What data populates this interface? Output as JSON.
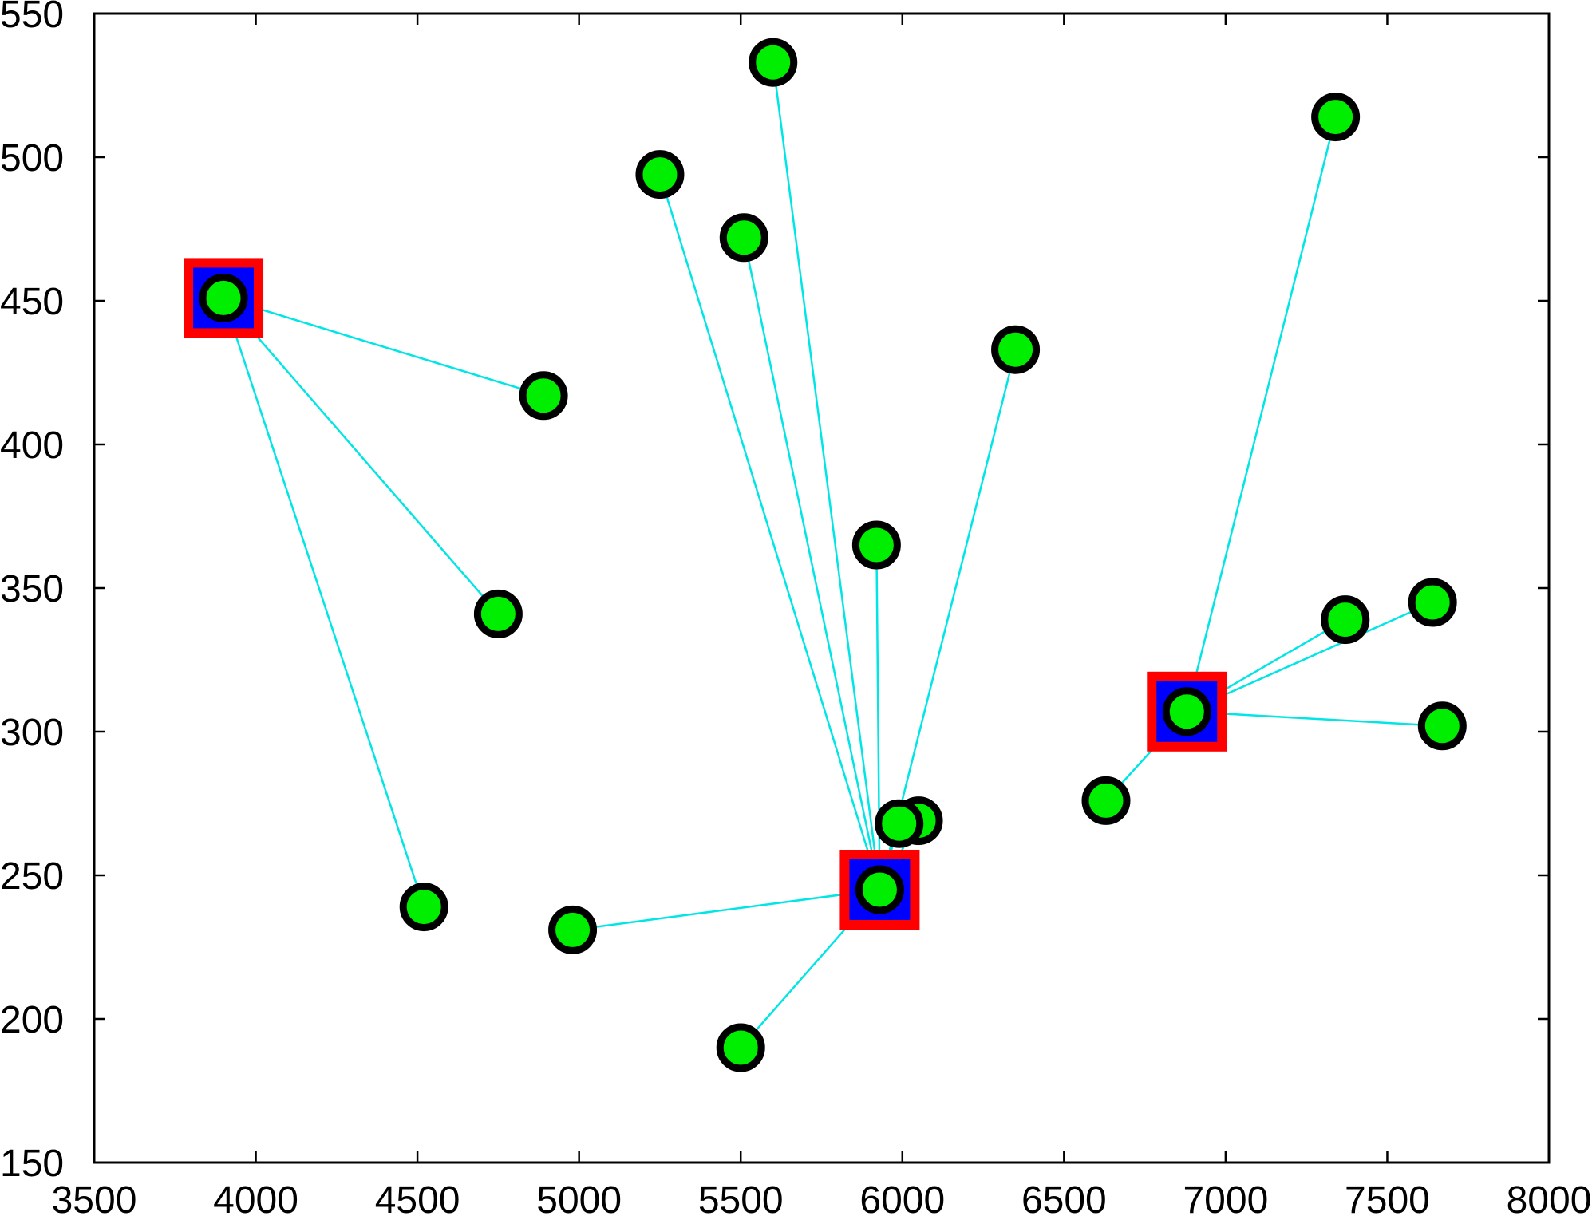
{
  "chart_data": {
    "type": "scatter",
    "title": "",
    "xlabel": "",
    "ylabel": "",
    "xlim": [
      3500,
      8000
    ],
    "ylim": [
      150,
      550
    ],
    "x_ticks": [
      3500,
      4000,
      4500,
      5000,
      5500,
      6000,
      6500,
      7000,
      7500,
      8000
    ],
    "y_ticks": [
      150,
      200,
      250,
      300,
      350,
      400,
      450,
      500,
      550
    ],
    "x_tick_labels": [
      "3500",
      "4000",
      "4500",
      "5000",
      "5500",
      "6000",
      "6500",
      "7000",
      "7500",
      "8000"
    ],
    "y_tick_labels": [
      "150",
      "200",
      "250",
      "300",
      "350",
      "400",
      "450",
      "500",
      "550"
    ],
    "grid": false,
    "legend": "none",
    "colors": {
      "point_fill": "#00ee00",
      "point_edge": "#000000",
      "center_fill": "#0000ff",
      "center_edge": "#ff0000",
      "link": "#00e5e5"
    },
    "centers": [
      {
        "x": 3900,
        "y": 451
      },
      {
        "x": 5930,
        "y": 245
      },
      {
        "x": 6880,
        "y": 307
      }
    ],
    "points": [
      {
        "x": 3900,
        "y": 451,
        "center": 0
      },
      {
        "x": 4890,
        "y": 417,
        "center": 0
      },
      {
        "x": 4750,
        "y": 341,
        "center": 0
      },
      {
        "x": 4520,
        "y": 239,
        "center": 0
      },
      {
        "x": 5930,
        "y": 245,
        "center": 1
      },
      {
        "x": 5600,
        "y": 533,
        "center": 1
      },
      {
        "x": 5250,
        "y": 494,
        "center": 1
      },
      {
        "x": 5510,
        "y": 472,
        "center": 1
      },
      {
        "x": 6350,
        "y": 433,
        "center": 1
      },
      {
        "x": 5920,
        "y": 365,
        "center": 1
      },
      {
        "x": 6050,
        "y": 269,
        "center": 1
      },
      {
        "x": 5990,
        "y": 268,
        "center": 1
      },
      {
        "x": 4980,
        "y": 231,
        "center": 1
      },
      {
        "x": 5500,
        "y": 190,
        "center": 1
      },
      {
        "x": 6880,
        "y": 307,
        "center": 2
      },
      {
        "x": 7340,
        "y": 514,
        "center": 2
      },
      {
        "x": 7370,
        "y": 339,
        "center": 2
      },
      {
        "x": 7640,
        "y": 345,
        "center": 2
      },
      {
        "x": 7670,
        "y": 302,
        "center": 2
      },
      {
        "x": 6630,
        "y": 276,
        "center": 2
      }
    ]
  }
}
